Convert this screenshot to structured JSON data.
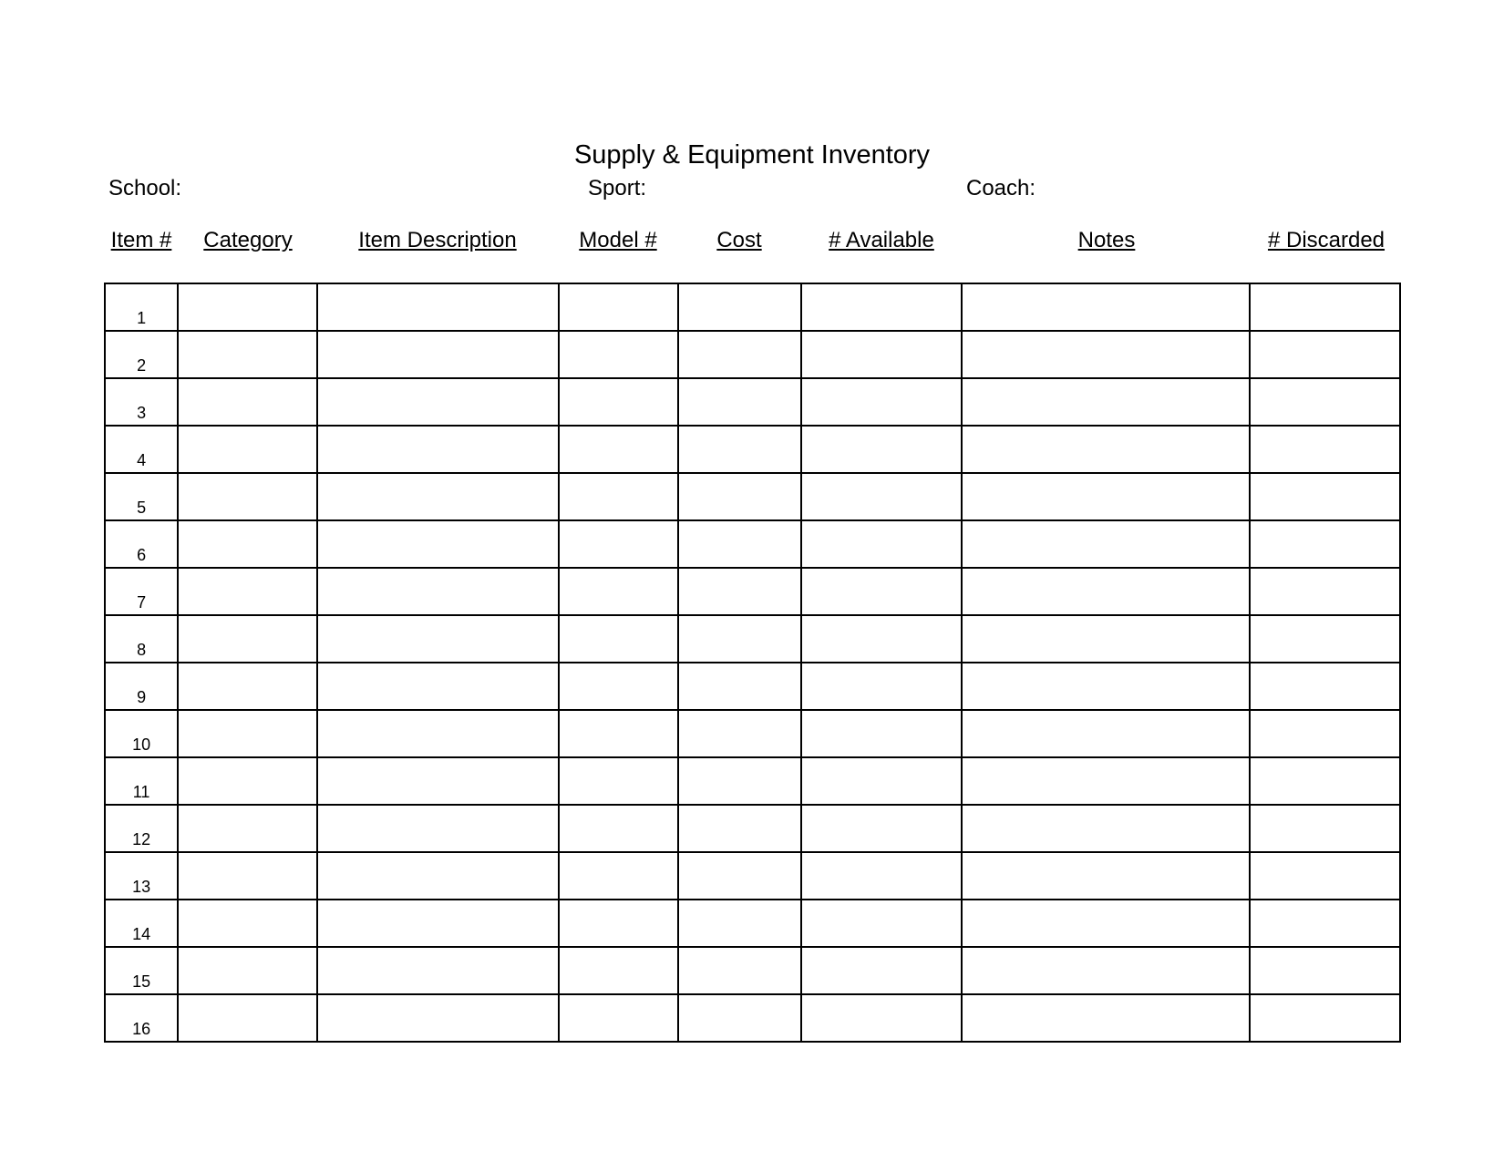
{
  "title": "Supply & Equipment Inventory",
  "fields": {
    "school": "School:",
    "sport": "Sport:",
    "coach": "Coach:"
  },
  "columns": [
    "Item #",
    "Category",
    "Item Description",
    "Model #",
    "Cost",
    "# Available",
    "Notes",
    "# Discarded"
  ],
  "rows": [
    "1",
    "2",
    "3",
    "4",
    "5",
    "6",
    "7",
    "8",
    "9",
    "10",
    "11",
    "12",
    "13",
    "14",
    "15",
    "16"
  ]
}
